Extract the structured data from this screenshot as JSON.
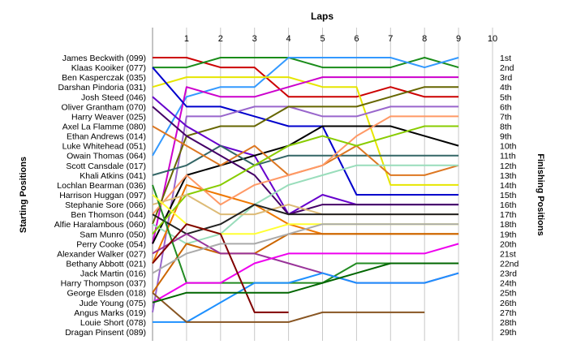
{
  "chart_data": {
    "type": "line",
    "title": "Laps",
    "ylabel_left": "Starting Positions",
    "ylabel_right": "Finishing Positions",
    "x_ticks": [
      1,
      2,
      3,
      4,
      5,
      6,
      7,
      8,
      9,
      10
    ],
    "xlim": [
      0,
      10
    ],
    "ylim": [
      1,
      29
    ],
    "y_reversed": true,
    "grid": "vertical",
    "left_labels": [
      "James Beckwith (099)",
      "Klaas Kooiker (077)",
      "Ben Kasperczak (035)",
      "Darshan Pindoria (031)",
      "Josh Steed (046)",
      "Oliver Grantham (070)",
      "Harry Weaver (025)",
      "Axel La Flamme (080)",
      "Ethan Andrews (014)",
      "Luke Whitehead (051)",
      "Owain Thomas (064)",
      "Scott Cansdale (017)",
      "Khali Atkins (041)",
      "Lochlan Bearman (036)",
      "Harrison Huggan (097)",
      "Stephanie Sore (066)",
      "Ben Thomson (044)",
      "Alfie Haralambous (060)",
      "Sam Munro (050)",
      "Perry Cooke (054)",
      "Alexander Walker (027)",
      "Bethany Abbott (021)",
      "Jack Martin (016)",
      "Harry Thompson (037)",
      "George Elsden (018)",
      "Jude Young (075)",
      "Angus Marks (019)",
      "Louie Short (078)",
      "Dragan Pinsent (089)"
    ],
    "right_labels": [
      "1st",
      "2nd",
      "3rd",
      "4th",
      "5th",
      "6th",
      "7th",
      "8th",
      "9th",
      "10th",
      "11th",
      "12th",
      "13th",
      "14th",
      "15th",
      "16th",
      "17th",
      "18th",
      "19th",
      "20th",
      "21st",
      "22nd",
      "23rd",
      "24th",
      "25th",
      "26th",
      "27th",
      "28th",
      "29th"
    ],
    "series": [
      {
        "color": "#cc0000",
        "values": [
          1,
          1,
          2,
          2,
          5,
          5,
          5,
          4,
          5,
          5
        ]
      },
      {
        "color": "#1a8c1a",
        "values": [
          2,
          2,
          1,
          1,
          1,
          2,
          2,
          2,
          1,
          2
        ]
      },
      {
        "color": "#3399ff",
        "values": [
          11,
          5,
          4,
          4,
          1,
          1,
          1,
          1,
          2,
          1
        ]
      },
      {
        "color": "#e6e600",
        "values": [
          4,
          3,
          3,
          3,
          3,
          4,
          4,
          14,
          14,
          14
        ]
      },
      {
        "color": "#cc00cc",
        "values": [
          20,
          4,
          5,
          5,
          4,
          3,
          3,
          3,
          3,
          3
        ]
      },
      {
        "color": "#0000cc",
        "values": [
          2,
          6,
          6,
          7,
          8,
          8,
          15,
          15,
          15,
          15
        ]
      },
      {
        "color": "#9966cc",
        "values": [
          27,
          7,
          7,
          6,
          6,
          7,
          7,
          6,
          6,
          6
        ]
      },
      {
        "color": "#666600",
        "values": [
          18,
          9,
          8,
          8,
          6,
          6,
          6,
          5,
          4,
          4
        ]
      },
      {
        "color": "#6600cc",
        "values": [
          5,
          8,
          10,
          11,
          17,
          15,
          16,
          16,
          16,
          16
        ]
      },
      {
        "color": "#000000",
        "values": [
          20,
          13,
          12,
          11,
          10,
          8,
          8,
          8,
          9,
          10
        ]
      },
      {
        "color": "#336666",
        "values": [
          13,
          12,
          10,
          12,
          11,
          11,
          11,
          11,
          11,
          11
        ]
      },
      {
        "color": "#dd7722",
        "values": [
          8,
          10,
          12,
          10,
          13,
          12,
          10,
          13,
          13,
          12
        ]
      },
      {
        "color": "#440066",
        "values": [
          6,
          9,
          11,
          13,
          17,
          16,
          16,
          16,
          16,
          16
        ]
      },
      {
        "color": "#99ddbb",
        "values": [
          18,
          20,
          19,
          16,
          14,
          13,
          12,
          12,
          12,
          12
        ]
      },
      {
        "color": "#ee7700",
        "values": [
          22,
          14,
          15,
          16,
          18,
          19,
          19,
          19,
          19,
          19
        ]
      },
      {
        "color": "#ff9966",
        "values": [
          17,
          13,
          16,
          14,
          13,
          12,
          9,
          7,
          7,
          7
        ]
      },
      {
        "color": "#88cc00",
        "values": [
          19,
          15,
          14,
          12,
          10,
          9,
          10,
          9,
          8,
          8
        ]
      },
      {
        "color": "#cc6600",
        "values": [
          25,
          20,
          21,
          21,
          19,
          19,
          19,
          19,
          19,
          19
        ]
      },
      {
        "color": "#ddbb77",
        "values": [
          16,
          15,
          17,
          17,
          16,
          17,
          17,
          17,
          17,
          17
        ]
      },
      {
        "color": "#222222",
        "values": [
          17,
          19,
          18,
          16,
          17,
          17,
          17,
          17,
          17,
          17
        ]
      },
      {
        "color": "#993399",
        "values": [
          21,
          19,
          21,
          21,
          22,
          23,
          24,
          24,
          24,
          23
        ]
      },
      {
        "color": "#228b22",
        "values": [
          14,
          24,
          24,
          24,
          24,
          24,
          22,
          22,
          22,
          22
        ]
      },
      {
        "color": "#1e90ff",
        "values": [
          28,
          28,
          26,
          24,
          24,
          23,
          24,
          24,
          24,
          23
        ]
      },
      {
        "color": "#ee00ee",
        "values": [
          26,
          24,
          24,
          22,
          21,
          21,
          21,
          21,
          21,
          20
        ]
      },
      {
        "color": "#ffff33",
        "values": [
          15,
          18,
          19,
          19,
          18,
          18,
          18,
          18,
          18,
          18
        ]
      },
      {
        "color": "#800000",
        "values": [
          22,
          18,
          19,
          27,
          27
        ]
      },
      {
        "color": "#885522",
        "values": [
          25,
          28,
          28,
          28,
          28,
          27,
          27,
          27,
          27
        ]
      },
      {
        "color": "#aaaaaa",
        "values": [
          23,
          21,
          20,
          20,
          19,
          18,
          18,
          18,
          18,
          18
        ]
      },
      {
        "color": "#006600",
        "values": [
          26,
          25,
          25,
          25,
          25,
          24,
          23,
          22,
          22,
          22
        ]
      }
    ]
  }
}
